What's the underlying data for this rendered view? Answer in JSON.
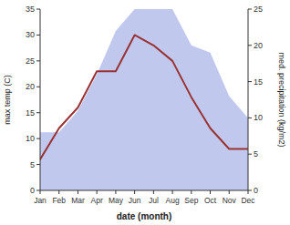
{
  "chart_data": {
    "type": "line",
    "xlabel": "date (month)",
    "ylabel": "max temp (C)",
    "y2label": "med. precipitation (kg/m2)",
    "categories": [
      "Jan",
      "Feb",
      "Mar",
      "Apr",
      "May",
      "Jun",
      "Jul",
      "Aug",
      "Sep",
      "Oct",
      "Nov",
      "Dec"
    ],
    "series": [
      {
        "type": "area",
        "axis": "y2",
        "color": "#c0c8ee",
        "values": [
          8,
          8,
          11,
          16,
          22,
          25,
          25,
          25,
          20,
          19,
          13,
          10
        ]
      },
      {
        "type": "line",
        "color": "#993333",
        "values": [
          6,
          12,
          16,
          23,
          23,
          30,
          28,
          25,
          18,
          12,
          8,
          8
        ]
      }
    ],
    "ylim": [
      0,
      35
    ],
    "yticks": [
      0,
      5,
      10,
      15,
      20,
      25,
      30,
      35
    ],
    "y2lim": [
      0,
      25
    ],
    "y2ticks": [
      0,
      5,
      10,
      15,
      20,
      25
    ],
    "grid": false
  }
}
